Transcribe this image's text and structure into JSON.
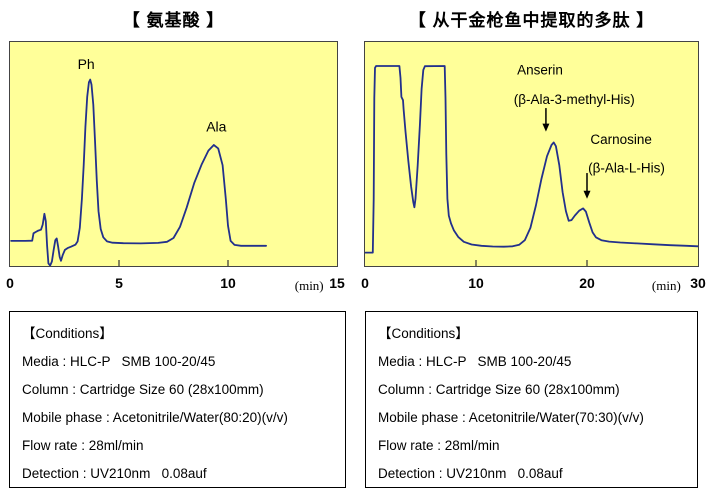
{
  "page": {
    "background": "#ffffff"
  },
  "panels": [
    {
      "conditions": {
        "header": "【Conditions】",
        "lines": [
          "Media : HLC-P   SMB 100-20/45",
          "Column : Cartridge Size 60 (28x100mm)",
          "Mobile phase : Acetonitrile/Water(80:20)(v/v)",
          "Flow rate : 28ml/min",
          "Detection : UV210nm   0.08auf"
        ]
      }
    },
    {
      "conditions": {
        "header": "【Conditions】",
        "lines": [
          "Media : HLC-P   SMB 100-20/45",
          "Column : Cartridge Size 60 (28x100mm)",
          "Mobile phase : Acetonitrile/Water(70:30)(v/v)",
          "Flow rate : 28ml/min",
          "Detection : UV210nm   0.08auf"
        ]
      }
    }
  ],
  "chart_data": [
    {
      "type": "line",
      "title": "【 氨基酸 】",
      "xlabel": "(min)",
      "xlim": [
        0,
        15
      ],
      "x_ticks_inner": [
        5,
        10
      ],
      "x_tick_labels": [
        0,
        5,
        10,
        15
      ],
      "unit_x_frac": 0.915,
      "background_color": "#ffff99",
      "line_color": "#22308c",
      "label_font_px": 14,
      "grid": false,
      "peaks": [
        {
          "label": "Ph",
          "retention_min": 3.65,
          "height_norm": 0.83
        },
        {
          "label": "Ala",
          "retention_min": 9.35,
          "height_norm": 0.54
        }
      ],
      "annotations": [
        {
          "kind": "text",
          "text": "Ph",
          "x": 3.1,
          "y_top": 0.938
        },
        {
          "kind": "text",
          "text": "Ala",
          "x": 9.0,
          "y_top": 0.66
        }
      ],
      "curve": [
        [
          0.05,
          0.112
        ],
        [
          0.7,
          0.112
        ],
        [
          1.02,
          0.113
        ],
        [
          1.08,
          0.146
        ],
        [
          1.18,
          0.152
        ],
        [
          1.3,
          0.158
        ],
        [
          1.42,
          0.162
        ],
        [
          1.5,
          0.185
        ],
        [
          1.58,
          0.233
        ],
        [
          1.64,
          0.2
        ],
        [
          1.7,
          0.09
        ],
        [
          1.76,
          0.012
        ],
        [
          1.84,
          0.002
        ],
        [
          1.92,
          0.02
        ],
        [
          2.0,
          0.07
        ],
        [
          2.08,
          0.115
        ],
        [
          2.14,
          0.123
        ],
        [
          2.2,
          0.09
        ],
        [
          2.28,
          0.04
        ],
        [
          2.34,
          0.023
        ],
        [
          2.42,
          0.05
        ],
        [
          2.52,
          0.072
        ],
        [
          2.64,
          0.08
        ],
        [
          2.8,
          0.086
        ],
        [
          3.0,
          0.095
        ],
        [
          3.1,
          0.11
        ],
        [
          3.2,
          0.17
        ],
        [
          3.3,
          0.3
        ],
        [
          3.38,
          0.45
        ],
        [
          3.46,
          0.62
        ],
        [
          3.54,
          0.755
        ],
        [
          3.62,
          0.82
        ],
        [
          3.68,
          0.832
        ],
        [
          3.74,
          0.81
        ],
        [
          3.82,
          0.72
        ],
        [
          3.9,
          0.56
        ],
        [
          3.98,
          0.38
        ],
        [
          4.06,
          0.245
        ],
        [
          4.16,
          0.165
        ],
        [
          4.28,
          0.128
        ],
        [
          4.45,
          0.11
        ],
        [
          4.7,
          0.104
        ],
        [
          5.2,
          0.102
        ],
        [
          6.0,
          0.101
        ],
        [
          6.8,
          0.103
        ],
        [
          7.2,
          0.108
        ],
        [
          7.5,
          0.125
        ],
        [
          7.8,
          0.175
        ],
        [
          8.1,
          0.26
        ],
        [
          8.45,
          0.37
        ],
        [
          8.8,
          0.455
        ],
        [
          9.1,
          0.515
        ],
        [
          9.35,
          0.54
        ],
        [
          9.55,
          0.525
        ],
        [
          9.75,
          0.45
        ],
        [
          9.9,
          0.3
        ],
        [
          10.0,
          0.18
        ],
        [
          10.12,
          0.112
        ],
        [
          10.3,
          0.094
        ],
        [
          10.6,
          0.09
        ],
        [
          11.2,
          0.09
        ],
        [
          11.75,
          0.09
        ]
      ]
    },
    {
      "type": "line",
      "title": "【 从干金枪鱼中提取的多肽 】",
      "xlabel": "(min)",
      "xlim": [
        0,
        30
      ],
      "x_ticks_inner": [
        10,
        20
      ],
      "x_tick_labels": [
        0,
        10,
        20,
        30
      ],
      "unit_x_frac": 0.905,
      "background_color": "#ffff99",
      "line_color": "#22308c",
      "label_font_px": 13.5,
      "grid": false,
      "peaks": [
        {
          "label": "",
          "retention_min": 2.0,
          "height_norm": 0.89,
          "clipped": true
        },
        {
          "label": "",
          "retention_min": 6.2,
          "height_norm": 0.89,
          "clipped": true
        },
        {
          "label": "Anserin (β-Ala-3-methyl-His)",
          "retention_min": 17.0,
          "height_norm": 0.55
        },
        {
          "label": "Carnosine (β-Ala-L-His)",
          "retention_min": 19.65,
          "height_norm": 0.26
        }
      ],
      "annotations": [
        {
          "kind": "text",
          "text": "Anserin",
          "x": 13.7,
          "y_top": 0.912
        },
        {
          "kind": "text",
          "text": "(β-Ala-3-methyl-His)",
          "x": 13.4,
          "y_top": 0.78
        },
        {
          "kind": "arrow",
          "x": 16.3,
          "y_from": 0.705,
          "y_to": 0.6
        },
        {
          "kind": "text",
          "text": "Carnosine",
          "x": 20.3,
          "y_top": 0.602
        },
        {
          "kind": "text",
          "text": "(β-Ala-L-His)",
          "x": 20.1,
          "y_top": 0.474
        },
        {
          "kind": "arrow",
          "x": 20.0,
          "y_from": 0.415,
          "y_to": 0.3
        }
      ],
      "curve": [
        [
          0.05,
          0.06
        ],
        [
          0.7,
          0.06
        ],
        [
          0.78,
          0.3
        ],
        [
          0.84,
          0.75
        ],
        [
          0.9,
          0.885
        ],
        [
          1.0,
          0.893
        ],
        [
          3.1,
          0.893
        ],
        [
          3.2,
          0.84
        ],
        [
          3.28,
          0.755
        ],
        [
          3.42,
          0.74
        ],
        [
          3.48,
          0.7
        ],
        [
          3.65,
          0.6
        ],
        [
          3.9,
          0.47
        ],
        [
          4.15,
          0.355
        ],
        [
          4.35,
          0.285
        ],
        [
          4.45,
          0.262
        ],
        [
          4.55,
          0.3
        ],
        [
          4.75,
          0.45
        ],
        [
          4.95,
          0.63
        ],
        [
          5.1,
          0.79
        ],
        [
          5.25,
          0.875
        ],
        [
          5.4,
          0.892
        ],
        [
          7.18,
          0.893
        ],
        [
          7.25,
          0.75
        ],
        [
          7.32,
          0.5
        ],
        [
          7.42,
          0.3
        ],
        [
          7.55,
          0.225
        ],
        [
          7.75,
          0.19
        ],
        [
          8.0,
          0.16
        ],
        [
          8.4,
          0.13
        ],
        [
          8.9,
          0.108
        ],
        [
          9.6,
          0.096
        ],
        [
          10.5,
          0.09
        ],
        [
          11.5,
          0.087
        ],
        [
          12.5,
          0.086
        ],
        [
          13.3,
          0.088
        ],
        [
          13.9,
          0.095
        ],
        [
          14.4,
          0.115
        ],
        [
          14.9,
          0.17
        ],
        [
          15.4,
          0.27
        ],
        [
          15.9,
          0.39
        ],
        [
          16.4,
          0.49
        ],
        [
          16.8,
          0.54
        ],
        [
          17.0,
          0.552
        ],
        [
          17.2,
          0.535
        ],
        [
          17.5,
          0.45
        ],
        [
          17.8,
          0.33
        ],
        [
          18.1,
          0.245
        ],
        [
          18.35,
          0.202
        ],
        [
          18.6,
          0.205
        ],
        [
          18.9,
          0.225
        ],
        [
          19.3,
          0.247
        ],
        [
          19.65,
          0.257
        ],
        [
          19.9,
          0.243
        ],
        [
          20.2,
          0.195
        ],
        [
          20.5,
          0.15
        ],
        [
          20.8,
          0.128
        ],
        [
          21.3,
          0.115
        ],
        [
          22.0,
          0.109
        ],
        [
          23.0,
          0.105
        ],
        [
          24.5,
          0.101
        ],
        [
          26.0,
          0.097
        ],
        [
          27.5,
          0.093
        ],
        [
          29.0,
          0.09
        ],
        [
          30.0,
          0.088
        ]
      ]
    }
  ]
}
